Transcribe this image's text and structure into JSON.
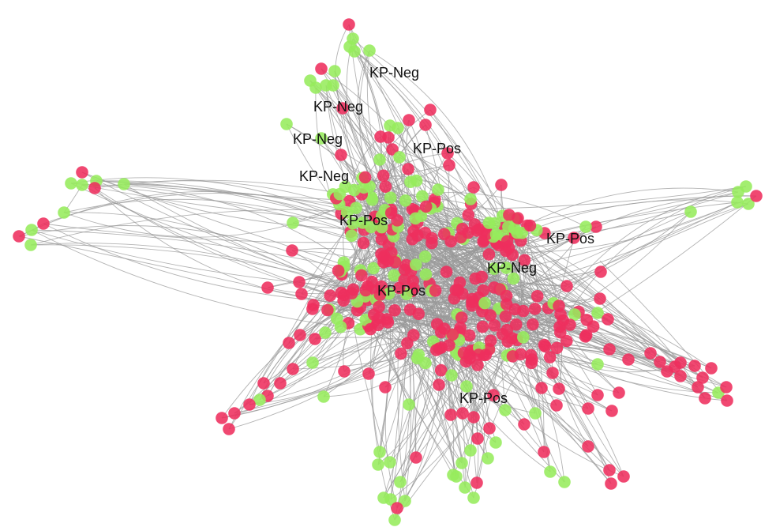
{
  "colors": {
    "negative_node": "#ee2f5d",
    "positive_node": "#96ec5c",
    "edge": "#9a9a9a",
    "background": "#ffffff"
  },
  "labels": [
    {
      "id": "l1",
      "text": "KP-Neg"
    },
    {
      "id": "l2",
      "text": "KP-Neg"
    },
    {
      "id": "l3",
      "text": "KP-Neg"
    },
    {
      "id": "l4",
      "text": "KP-Pos"
    },
    {
      "id": "l5",
      "text": "KP-Neg"
    },
    {
      "id": "l6",
      "text": "KP-Pos"
    },
    {
      "id": "l7",
      "text": "KP-Pos"
    },
    {
      "id": "l8",
      "text": "KP-Neg"
    },
    {
      "id": "l9",
      "text": "KP-Pos"
    },
    {
      "id": "l10",
      "text": "KP-Pos"
    }
  ]
}
